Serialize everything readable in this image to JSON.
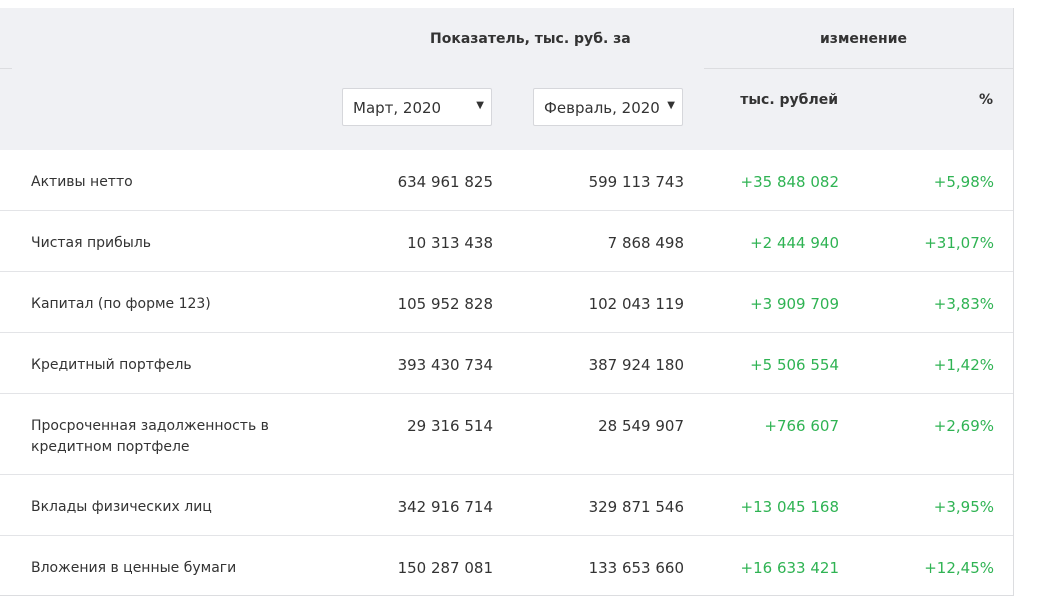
{
  "header": {
    "indicator_title": "Показатель, тыс. руб. за",
    "change_title": "изменение",
    "change_abs_label": "тыс. рублей",
    "change_pct_label": "%",
    "period1_select": "Март, 2020",
    "period2_select": "Февраль, 2020"
  },
  "rows": [
    {
      "label": "Активы нетто",
      "p1": "634 961 825",
      "p2": "599 113 743",
      "diff": "+35 848 082",
      "pct": "+5,98%"
    },
    {
      "label": "Чистая прибыль",
      "p1": "10 313 438",
      "p2": "7 868 498",
      "diff": "+2 444 940",
      "pct": "+31,07%"
    },
    {
      "label": "Капитал (по форме 123)",
      "p1": "105 952 828",
      "p2": "102 043 119",
      "diff": "+3 909 709",
      "pct": "+3,83%"
    },
    {
      "label": "Кредитный портфель",
      "p1": "393 430 734",
      "p2": "387 924 180",
      "diff": "+5 506 554",
      "pct": "+1,42%"
    },
    {
      "label": "Просроченная задолженность в кредитном портфеле",
      "p1": "29 316 514",
      "p2": "28 549 907",
      "diff": "+766 607",
      "pct": "+2,69%"
    },
    {
      "label": "Вклады физических лиц",
      "p1": "342 916 714",
      "p2": "329 871 546",
      "diff": "+13 045 168",
      "pct": "+3,95%"
    },
    {
      "label": "Вложения в ценные бумаги",
      "p1": "150 287 081",
      "p2": "133 653 660",
      "diff": "+16 633 421",
      "pct": "+12,45%"
    }
  ],
  "colors": {
    "positive": "#2fb353",
    "header_bg": "#f0f1f4"
  }
}
